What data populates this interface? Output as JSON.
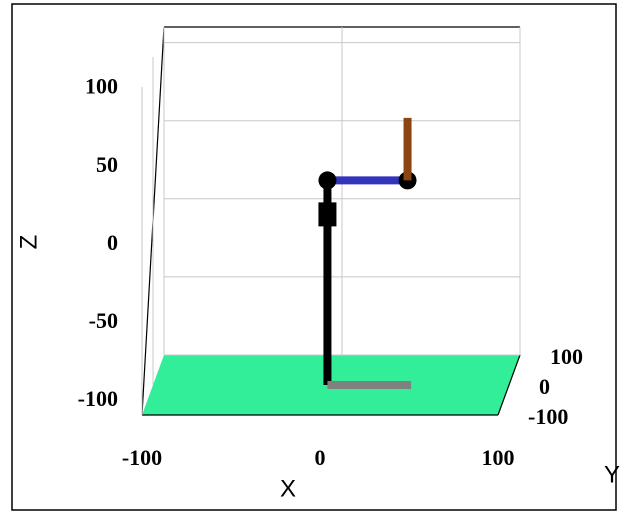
{
  "chart_data": {
    "type": "line3d",
    "xlabel": "X",
    "ylabel": "Y",
    "zlabel": "Z",
    "xlim": [
      -100,
      100
    ],
    "ylim": [
      -100,
      100
    ],
    "zlim": [
      -100,
      110
    ],
    "xticks": [
      -100,
      0,
      100
    ],
    "yticks": [
      -100,
      0,
      100
    ],
    "zticks": [
      -100,
      -50,
      0,
      50,
      100
    ],
    "grid": true,
    "floor_color": "#33ee99",
    "series": [
      {
        "color": "#000000",
        "x": [
          -2,
          -2
        ],
        "y": [
          0,
          0
        ],
        "z": [
          -100,
          31
        ]
      },
      {
        "color": "#3333bb",
        "marker_color": "#000000",
        "x": [
          -2,
          43
        ],
        "y": [
          0,
          0
        ],
        "z": [
          31,
          31
        ]
      },
      {
        "color": "#8b4513",
        "x": [
          43,
          43
        ],
        "y": [
          0,
          0
        ],
        "z": [
          31,
          71
        ]
      },
      {
        "color": "#808080",
        "x": [
          -2,
          45
        ],
        "y": [
          0,
          0
        ],
        "z": [
          -100,
          -100
        ]
      }
    ]
  }
}
